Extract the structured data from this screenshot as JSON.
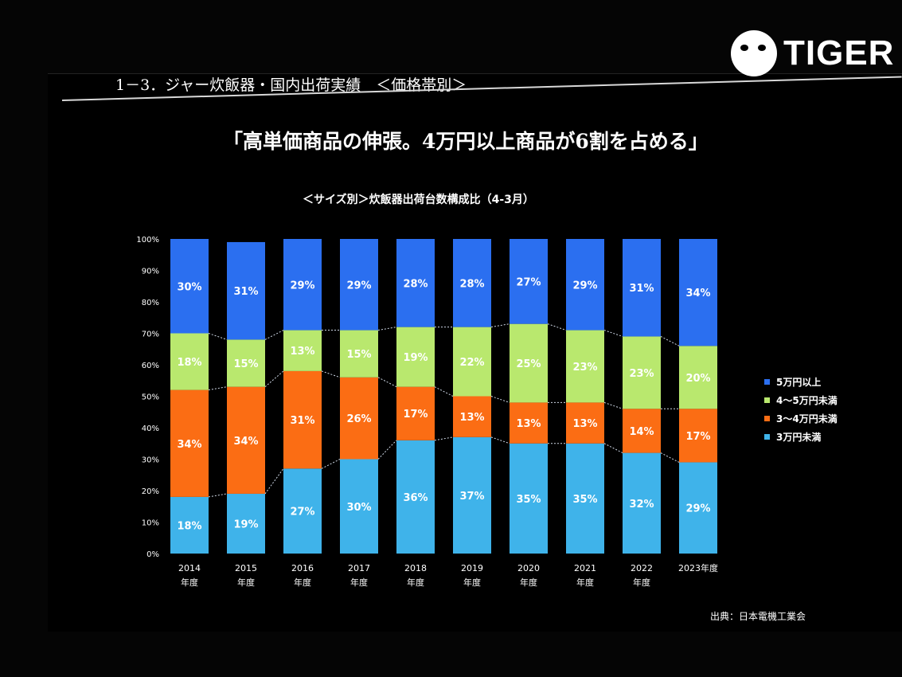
{
  "logo": {
    "text": "TIGER"
  },
  "slide": {
    "heading": "1－3．ジャー炊飯器・国内出荷実績　＜価格帯別＞",
    "headline": "「高単価商品の伸張。4万円以上商品が6割を占める」",
    "source": "出典：日本電機工業会"
  },
  "chart_data": {
    "type": "bar",
    "stacked": true,
    "title": "＜サイズ別＞炊飯器出荷台数構成比（4-3月）",
    "categories": [
      "2014\n年度",
      "2015\n年度",
      "2016\n年度",
      "2017\n年度",
      "2018\n年度",
      "2019\n年度",
      "2020\n年度",
      "2021\n年度",
      "2022\n年度",
      "2023年度"
    ],
    "yticks": [
      "0%",
      "10%",
      "20%",
      "30%",
      "40%",
      "50%",
      "60%",
      "70%",
      "80%",
      "90%",
      "100%"
    ],
    "ylim": [
      0,
      100
    ],
    "legend_position": "right",
    "series": [
      {
        "name": "3万円未満",
        "color": "#3fb3ea",
        "values": [
          18,
          19,
          27,
          30,
          36,
          37,
          35,
          35,
          32,
          29
        ],
        "labels": [
          "18%",
          "19%",
          "27%",
          "30%",
          "36%",
          "37%",
          "35%",
          "35%",
          "32%",
          "29%"
        ]
      },
      {
        "name": "3～4万円未満",
        "color": "#fb6d14",
        "values": [
          34,
          34,
          31,
          26,
          17,
          13,
          13,
          13,
          14,
          17
        ],
        "labels": [
          "34%",
          "34%",
          "31%",
          "26%",
          "17%",
          "13%",
          "13%",
          "13%",
          "14%",
          "17%"
        ]
      },
      {
        "name": "4～5万円未満",
        "color": "#b9e86e",
        "values": [
          18,
          15,
          13,
          15,
          19,
          22,
          25,
          23,
          23,
          20
        ],
        "labels": [
          "18%",
          "15%",
          "13%",
          "15%",
          "19%",
          "22%",
          "25%",
          "23%",
          "23%",
          "20%"
        ]
      },
      {
        "name": "5万円以上",
        "color": "#2b6ff0",
        "values": [
          30,
          31,
          29,
          29,
          28,
          28,
          27,
          29,
          31,
          34
        ],
        "labels": [
          "30%",
          "31%",
          "29%",
          "29%",
          "28%",
          "28%",
          "27%",
          "29%",
          "31%",
          "34%"
        ]
      }
    ],
    "legend": [
      {
        "name": "5万円以上",
        "color": "#2b6ff0"
      },
      {
        "name": "4～5万円未満",
        "color": "#b9e86e"
      },
      {
        "name": "3～4万円未満",
        "color": "#fb6d14"
      },
      {
        "name": "3万円未満",
        "color": "#3fb3ea"
      }
    ]
  }
}
